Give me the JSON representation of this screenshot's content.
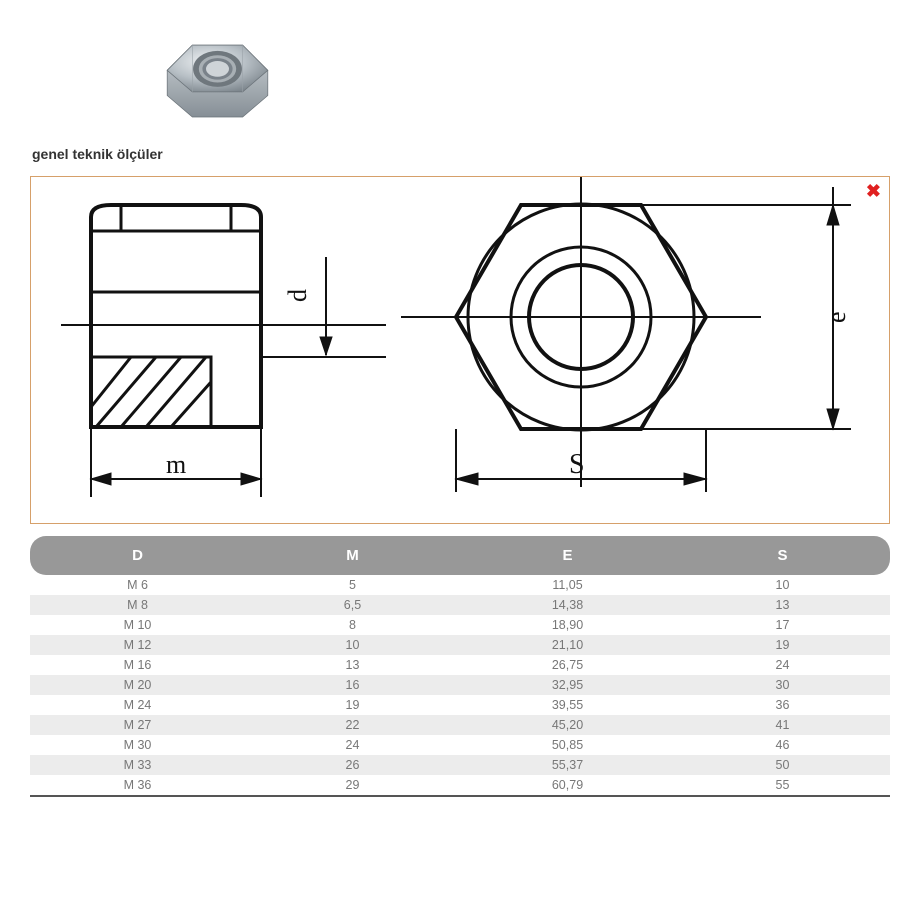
{
  "title": "genel teknik ölçüler",
  "close_icon": "✖",
  "diagram": {
    "box_border_color": "#d6a06a",
    "labels": {
      "m": "m",
      "d": "d",
      "s": "S",
      "e": "e"
    },
    "stroke_color": "#111111",
    "stroke_width_main": 4,
    "stroke_width_thin": 2
  },
  "nut_photo": {
    "body_color": "#bfc6cc",
    "shade_color": "#8e979e",
    "highlight_color": "#e6eaed",
    "hole_color": "#9aa2a8"
  },
  "table": {
    "header_bg": "#989898",
    "header_fg": "#ffffff",
    "row_alt_bg": "#ececec",
    "text_color": "#777777",
    "columns": [
      "D",
      "M",
      "E",
      "S"
    ],
    "rows": [
      [
        "M 6",
        "5",
        "11,05",
        "10"
      ],
      [
        "M 8",
        "6,5",
        "14,38",
        "13"
      ],
      [
        "M 10",
        "8",
        "18,90",
        "17"
      ],
      [
        "M 12",
        "10",
        "21,10",
        "19"
      ],
      [
        "M 16",
        "13",
        "26,75",
        "24"
      ],
      [
        "M 20",
        "16",
        "32,95",
        "30"
      ],
      [
        "M 24",
        "19",
        "39,55",
        "36"
      ],
      [
        "M 27",
        "22",
        "45,20",
        "41"
      ],
      [
        "M 30",
        "24",
        "50,85",
        "46"
      ],
      [
        "M 33",
        "26",
        "55,37",
        "50"
      ],
      [
        "M 36",
        "29",
        "60,79",
        "55"
      ]
    ]
  }
}
